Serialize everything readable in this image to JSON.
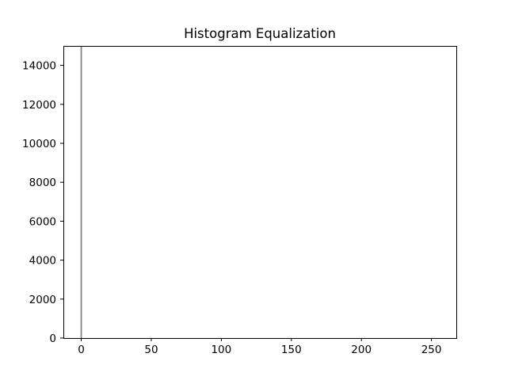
{
  "chart_data": {
    "type": "bar",
    "title": "Histogram Equalization",
    "xlabel": "",
    "ylabel": "",
    "xlim": [
      -12.75,
      267.75
    ],
    "ylim": [
      0,
      15000
    ],
    "xticks": [
      0,
      50,
      100,
      150,
      200,
      250
    ],
    "yticks": [
      0,
      2000,
      4000,
      6000,
      8000,
      10000,
      12000,
      14000
    ],
    "grid": false,
    "legend": "none",
    "bar_color": "#808080",
    "series": [
      {
        "x": [
          0
        ],
        "values": [
          15000
        ]
      }
    ]
  }
}
